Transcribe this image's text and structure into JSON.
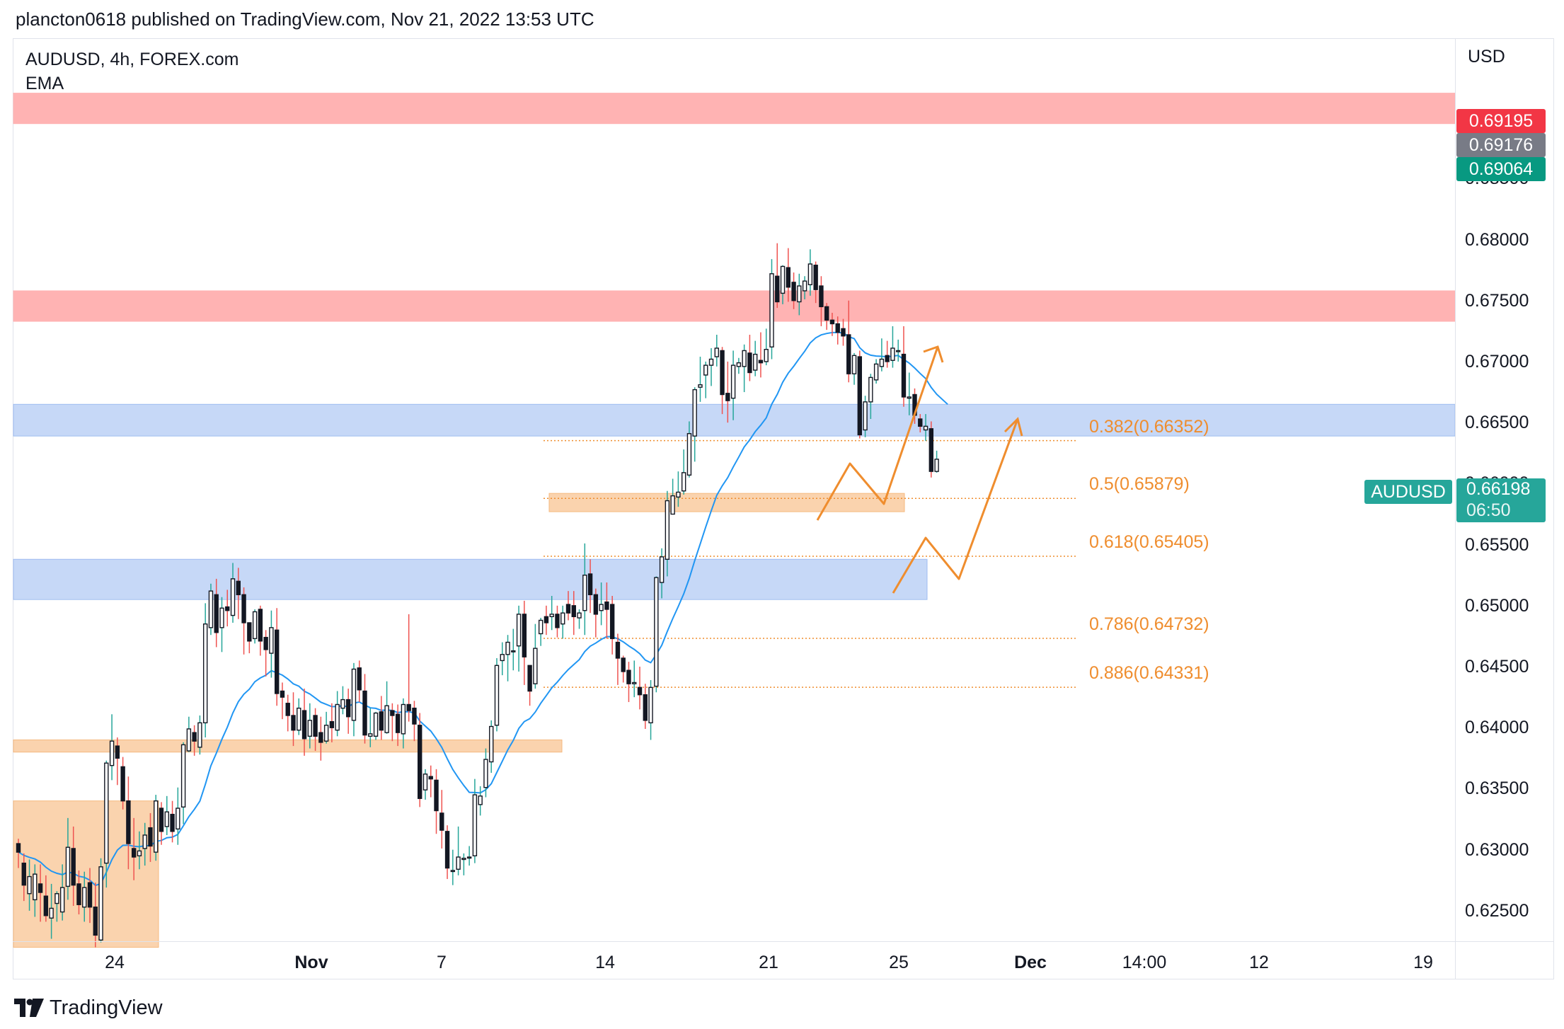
{
  "publisher_line": "plancton0618 published on TradingView.com, Nov 21, 2022 13:53 UTC",
  "symbol_line": "AUDUSD, 4h, FOREX.com",
  "indicator_label": "EMA",
  "currency_label": "USD",
  "logo_text": "TradingView",
  "colors": {
    "up": "#26a69a",
    "down": "#ef5350",
    "candle_body": "#131722",
    "ema": "#2196f3",
    "resistance_zone": "#ffb3b3",
    "support_zone": "#c6d8f7",
    "demand_zone": "#fad3ae",
    "fib": "#ef8d2e",
    "projection": "#ef8d2e",
    "tag_red": "#f23645",
    "tag_gray": "#787b86",
    "tag_green": "#089981",
    "tag_teal": "#26a69a"
  },
  "chart_data": {
    "type": "candlestick",
    "timeframe": "4h",
    "ylim": [
      0.6225,
      0.6965
    ],
    "y_ticks": [
      "0.68500",
      "0.68000",
      "0.67500",
      "0.67000",
      "0.66500",
      "0.66000",
      "0.65500",
      "0.65000",
      "0.64500",
      "0.64000",
      "0.63500",
      "0.63000",
      "0.62500"
    ],
    "x_ticks": [
      "24",
      "Nov",
      "7",
      "14",
      "21",
      "25",
      "Dec",
      "14:00",
      "12",
      "19"
    ],
    "price_tags": [
      {
        "value": "0.69195",
        "color": "tag_red"
      },
      {
        "value": "0.69176",
        "color": "tag_gray"
      },
      {
        "value": "0.69064",
        "color": "tag_green"
      }
    ],
    "last_price": {
      "symbol": "AUDUSD",
      "value": "0.66198",
      "countdown": "06:50"
    },
    "fibonacci": [
      {
        "label": "0.382(0.66352)",
        "level": 0.66352
      },
      {
        "label": "0.5(0.65879)",
        "level": 0.65879
      },
      {
        "label": "0.618(0.65405)",
        "level": 0.65405
      },
      {
        "label": "0.786(0.64732)",
        "level": 0.64732
      },
      {
        "label": "0.886(0.64331)",
        "level": 0.64331
      }
    ],
    "zones": [
      {
        "kind": "resistance",
        "top": 0.692,
        "bottom": 0.6895
      },
      {
        "kind": "resistance",
        "top": 0.6758,
        "bottom": 0.6733
      },
      {
        "kind": "support",
        "top": 0.6665,
        "bottom": 0.6639
      },
      {
        "kind": "support",
        "top": 0.6538,
        "bottom": 0.6505
      },
      {
        "kind": "demand",
        "top": 0.6592,
        "bottom": 0.6577
      },
      {
        "kind": "demand",
        "top": 0.639,
        "bottom": 0.638
      },
      {
        "kind": "demand",
        "top": 0.634,
        "bottom": 0.622
      }
    ],
    "candles": [
      [
        0.6305,
        0.6298,
        0.6285,
        0.6309
      ],
      [
        0.6289,
        0.6271,
        0.6258,
        0.6297
      ],
      [
        0.6264,
        0.6278,
        0.625,
        0.6292
      ],
      [
        0.6259,
        0.628,
        0.6245,
        0.6288
      ],
      [
        0.6272,
        0.6265,
        0.6241,
        0.6288
      ],
      [
        0.6262,
        0.6246,
        0.6241,
        0.6279
      ],
      [
        0.6244,
        0.6252,
        0.6227,
        0.6272
      ],
      [
        0.6256,
        0.6264,
        0.6241,
        0.6266
      ],
      [
        0.6249,
        0.6269,
        0.6242,
        0.6288
      ],
      [
        0.627,
        0.6302,
        0.6259,
        0.6326
      ],
      [
        0.6301,
        0.6271,
        0.6254,
        0.6319
      ],
      [
        0.6272,
        0.6255,
        0.6247,
        0.6283
      ],
      [
        0.6253,
        0.6269,
        0.6241,
        0.6282
      ],
      [
        0.6273,
        0.6253,
        0.624,
        0.6285
      ],
      [
        0.6253,
        0.623,
        0.622,
        0.6273
      ],
      [
        0.6226,
        0.6286,
        0.6224,
        0.6293
      ],
      [
        0.6289,
        0.6371,
        0.6269,
        0.6373
      ],
      [
        0.6369,
        0.6389,
        0.6357,
        0.6411
      ],
      [
        0.6385,
        0.6375,
        0.6353,
        0.6392
      ],
      [
        0.6368,
        0.634,
        0.6333,
        0.6376
      ],
      [
        0.634,
        0.6305,
        0.6284,
        0.636
      ],
      [
        0.6301,
        0.6294,
        0.6275,
        0.6326
      ],
      [
        0.6295,
        0.6299,
        0.6284,
        0.6315
      ],
      [
        0.6301,
        0.6312,
        0.6287,
        0.6322
      ],
      [
        0.6318,
        0.6303,
        0.629,
        0.633
      ],
      [
        0.6298,
        0.634,
        0.6291,
        0.6345
      ],
      [
        0.6334,
        0.6315,
        0.6304,
        0.6339
      ],
      [
        0.6319,
        0.6331,
        0.6312,
        0.6344
      ],
      [
        0.6329,
        0.6315,
        0.6306,
        0.634
      ],
      [
        0.6317,
        0.6334,
        0.6304,
        0.6351
      ],
      [
        0.6335,
        0.6386,
        0.6321,
        0.6388
      ],
      [
        0.6381,
        0.6399,
        0.638,
        0.6409
      ],
      [
        0.6396,
        0.6389,
        0.6377,
        0.6402
      ],
      [
        0.6384,
        0.6404,
        0.6378,
        0.641
      ],
      [
        0.6404,
        0.6485,
        0.6392,
        0.6502
      ],
      [
        0.6482,
        0.6512,
        0.6476,
        0.6518
      ],
      [
        0.6509,
        0.6478,
        0.6466,
        0.6522
      ],
      [
        0.6482,
        0.6498,
        0.6462,
        0.6507
      ],
      [
        0.6499,
        0.6496,
        0.6483,
        0.6513
      ],
      [
        0.6492,
        0.6522,
        0.6486,
        0.6535
      ],
      [
        0.652,
        0.6509,
        0.6489,
        0.6531
      ],
      [
        0.6509,
        0.6486,
        0.646,
        0.6515
      ],
      [
        0.6486,
        0.6471,
        0.6461,
        0.6485
      ],
      [
        0.6473,
        0.6495,
        0.6469,
        0.6497
      ],
      [
        0.6497,
        0.6471,
        0.6459,
        0.65
      ],
      [
        0.6474,
        0.6464,
        0.6442,
        0.648
      ],
      [
        0.6461,
        0.6482,
        0.6441,
        0.6496
      ],
      [
        0.648,
        0.6428,
        0.6418,
        0.6498
      ],
      [
        0.643,
        0.6425,
        0.6407,
        0.6437
      ],
      [
        0.642,
        0.641,
        0.6397,
        0.6427
      ],
      [
        0.641,
        0.6398,
        0.6385,
        0.6429
      ],
      [
        0.6398,
        0.6416,
        0.6394,
        0.6424
      ],
      [
        0.6414,
        0.6391,
        0.6377,
        0.6432
      ],
      [
        0.6393,
        0.6406,
        0.6383,
        0.642
      ],
      [
        0.641,
        0.6393,
        0.6381,
        0.6416
      ],
      [
        0.6396,
        0.6388,
        0.6373,
        0.6409
      ],
      [
        0.6389,
        0.6402,
        0.6387,
        0.6413
      ],
      [
        0.6405,
        0.64,
        0.6388,
        0.642
      ],
      [
        0.6398,
        0.6419,
        0.6393,
        0.643
      ],
      [
        0.6416,
        0.6423,
        0.6411,
        0.6434
      ],
      [
        0.6423,
        0.6409,
        0.6395,
        0.6432
      ],
      [
        0.6406,
        0.6448,
        0.6393,
        0.6453
      ],
      [
        0.6449,
        0.6431,
        0.6421,
        0.6455
      ],
      [
        0.643,
        0.6394,
        0.6387,
        0.6444
      ],
      [
        0.6393,
        0.6395,
        0.6384,
        0.6416
      ],
      [
        0.6393,
        0.6412,
        0.639,
        0.6413
      ],
      [
        0.6413,
        0.6398,
        0.639,
        0.6426
      ],
      [
        0.6396,
        0.6418,
        0.6395,
        0.6438
      ],
      [
        0.6414,
        0.641,
        0.6389,
        0.642
      ],
      [
        0.6411,
        0.6396,
        0.6385,
        0.6419
      ],
      [
        0.6395,
        0.6419,
        0.6383,
        0.6424
      ],
      [
        0.6419,
        0.6414,
        0.6405,
        0.6493
      ],
      [
        0.6416,
        0.6403,
        0.6389,
        0.6422
      ],
      [
        0.6402,
        0.6342,
        0.6335,
        0.6412
      ],
      [
        0.6349,
        0.6362,
        0.6341,
        0.6366
      ],
      [
        0.636,
        0.6358,
        0.6343,
        0.6369
      ],
      [
        0.6357,
        0.6332,
        0.6313,
        0.6366
      ],
      [
        0.633,
        0.6316,
        0.6301,
        0.6349
      ],
      [
        0.6315,
        0.6285,
        0.6276,
        0.632
      ],
      [
        0.6283,
        0.6283,
        0.6271,
        0.63
      ],
      [
        0.6284,
        0.6294,
        0.6279,
        0.6319
      ],
      [
        0.6292,
        0.6293,
        0.6279,
        0.6297
      ],
      [
        0.6294,
        0.6294,
        0.6287,
        0.6303
      ],
      [
        0.6295,
        0.6345,
        0.6289,
        0.6358
      ],
      [
        0.6337,
        0.6344,
        0.6328,
        0.6352
      ],
      [
        0.6351,
        0.6374,
        0.6343,
        0.6383
      ],
      [
        0.6372,
        0.6401,
        0.6363,
        0.6406
      ],
      [
        0.6402,
        0.6451,
        0.6397,
        0.6457
      ],
      [
        0.6455,
        0.646,
        0.6443,
        0.647
      ],
      [
        0.646,
        0.647,
        0.6438,
        0.6476
      ],
      [
        0.6463,
        0.6463,
        0.6447,
        0.6481
      ],
      [
        0.6467,
        0.6493,
        0.6446,
        0.65
      ],
      [
        0.6493,
        0.6458,
        0.6435,
        0.6504
      ],
      [
        0.6451,
        0.643,
        0.6418,
        0.6451
      ],
      [
        0.6436,
        0.6465,
        0.6432,
        0.6485
      ],
      [
        0.6477,
        0.6488,
        0.6467,
        0.649
      ],
      [
        0.6491,
        0.6486,
        0.6476,
        0.65
      ],
      [
        0.6491,
        0.6493,
        0.648,
        0.6508
      ],
      [
        0.6493,
        0.6482,
        0.6474,
        0.65
      ],
      [
        0.6485,
        0.6494,
        0.6473,
        0.65
      ],
      [
        0.6501,
        0.6494,
        0.6488,
        0.6512
      ],
      [
        0.65,
        0.6491,
        0.6476,
        0.6512
      ],
      [
        0.649,
        0.6494,
        0.6481,
        0.6497
      ],
      [
        0.6496,
        0.6525,
        0.6476,
        0.6551
      ],
      [
        0.6526,
        0.6509,
        0.6494,
        0.6538
      ],
      [
        0.6509,
        0.6493,
        0.6474,
        0.6514
      ],
      [
        0.6496,
        0.6501,
        0.6484,
        0.6519
      ],
      [
        0.6503,
        0.6497,
        0.6473,
        0.6519
      ],
      [
        0.6501,
        0.6473,
        0.646,
        0.6508
      ],
      [
        0.647,
        0.6457,
        0.6435,
        0.6477
      ],
      [
        0.6457,
        0.6446,
        0.6437,
        0.6459
      ],
      [
        0.6447,
        0.6436,
        0.6421,
        0.6454
      ],
      [
        0.6436,
        0.6437,
        0.6425,
        0.6455
      ],
      [
        0.6433,
        0.6427,
        0.6415,
        0.645
      ],
      [
        0.6427,
        0.6406,
        0.6399,
        0.6436
      ],
      [
        0.6404,
        0.6433,
        0.639,
        0.6439
      ],
      [
        0.6434,
        0.6523,
        0.6429,
        0.6524
      ],
      [
        0.6519,
        0.654,
        0.6506,
        0.6547
      ],
      [
        0.6538,
        0.6586,
        0.6524,
        0.6594
      ],
      [
        0.6575,
        0.659,
        0.6577,
        0.6604
      ],
      [
        0.6589,
        0.6593,
        0.6581,
        0.661
      ],
      [
        0.6594,
        0.6609,
        0.6591,
        0.6628
      ],
      [
        0.6607,
        0.6641,
        0.6605,
        0.6651
      ],
      [
        0.6639,
        0.6677,
        0.6618,
        0.6679
      ],
      [
        0.6679,
        0.6681,
        0.6667,
        0.6704
      ],
      [
        0.6689,
        0.6697,
        0.667,
        0.67
      ],
      [
        0.6697,
        0.6702,
        0.668,
        0.6711
      ],
      [
        0.6704,
        0.6711,
        0.6696,
        0.6722
      ],
      [
        0.6709,
        0.6673,
        0.6657,
        0.6712
      ],
      [
        0.6674,
        0.6668,
        0.665,
        0.67
      ],
      [
        0.667,
        0.6697,
        0.6652,
        0.6709
      ],
      [
        0.6696,
        0.6699,
        0.669,
        0.6703
      ],
      [
        0.6696,
        0.6709,
        0.6675,
        0.6714
      ],
      [
        0.6707,
        0.6691,
        0.6684,
        0.6722
      ],
      [
        0.6693,
        0.6706,
        0.6688,
        0.6717
      ],
      [
        0.6701,
        0.6699,
        0.6687,
        0.6724
      ],
      [
        0.67,
        0.671,
        0.6697,
        0.6727
      ],
      [
        0.6712,
        0.6772,
        0.6702,
        0.6784
      ],
      [
        0.677,
        0.6749,
        0.6744,
        0.6797
      ],
      [
        0.6756,
        0.6778,
        0.6747,
        0.6779
      ],
      [
        0.6777,
        0.6761,
        0.6749,
        0.6793
      ],
      [
        0.6765,
        0.675,
        0.6743,
        0.6773
      ],
      [
        0.6749,
        0.6762,
        0.6738,
        0.6772
      ],
      [
        0.6758,
        0.6766,
        0.6751,
        0.677
      ],
      [
        0.6763,
        0.678,
        0.6754,
        0.6792
      ],
      [
        0.6779,
        0.6759,
        0.6748,
        0.6782
      ],
      [
        0.6762,
        0.6745,
        0.6729,
        0.677
      ],
      [
        0.6745,
        0.6734,
        0.6726,
        0.6748
      ],
      [
        0.6734,
        0.6731,
        0.6721,
        0.674
      ],
      [
        0.6731,
        0.6724,
        0.6714,
        0.6737
      ],
      [
        0.6727,
        0.6721,
        0.6713,
        0.6735
      ],
      [
        0.6722,
        0.669,
        0.6683,
        0.675
      ],
      [
        0.669,
        0.6705,
        0.6681,
        0.6707
      ],
      [
        0.6704,
        0.664,
        0.6637,
        0.6709
      ],
      [
        0.6644,
        0.6667,
        0.6638,
        0.6672
      ],
      [
        0.6667,
        0.6687,
        0.6653,
        0.669
      ],
      [
        0.6685,
        0.6698,
        0.6682,
        0.6702
      ],
      [
        0.6696,
        0.6702,
        0.6692,
        0.6719
      ],
      [
        0.6705,
        0.67,
        0.6695,
        0.6717
      ],
      [
        0.6701,
        0.6711,
        0.6695,
        0.6729
      ],
      [
        0.6709,
        0.6709,
        0.67,
        0.6718
      ],
      [
        0.6706,
        0.6671,
        0.6663,
        0.6729
      ],
      [
        0.667,
        0.6671,
        0.6656,
        0.6691
      ],
      [
        0.6673,
        0.6656,
        0.6649,
        0.6678
      ],
      [
        0.6653,
        0.6647,
        0.6642,
        0.6657
      ],
      [
        0.6644,
        0.6647,
        0.6635,
        0.6657
      ],
      [
        0.6645,
        0.661,
        0.6605,
        0.6651
      ],
      [
        0.661,
        0.662,
        0.6609,
        0.6627
      ]
    ],
    "ema_endpoint": 0.6665
  }
}
